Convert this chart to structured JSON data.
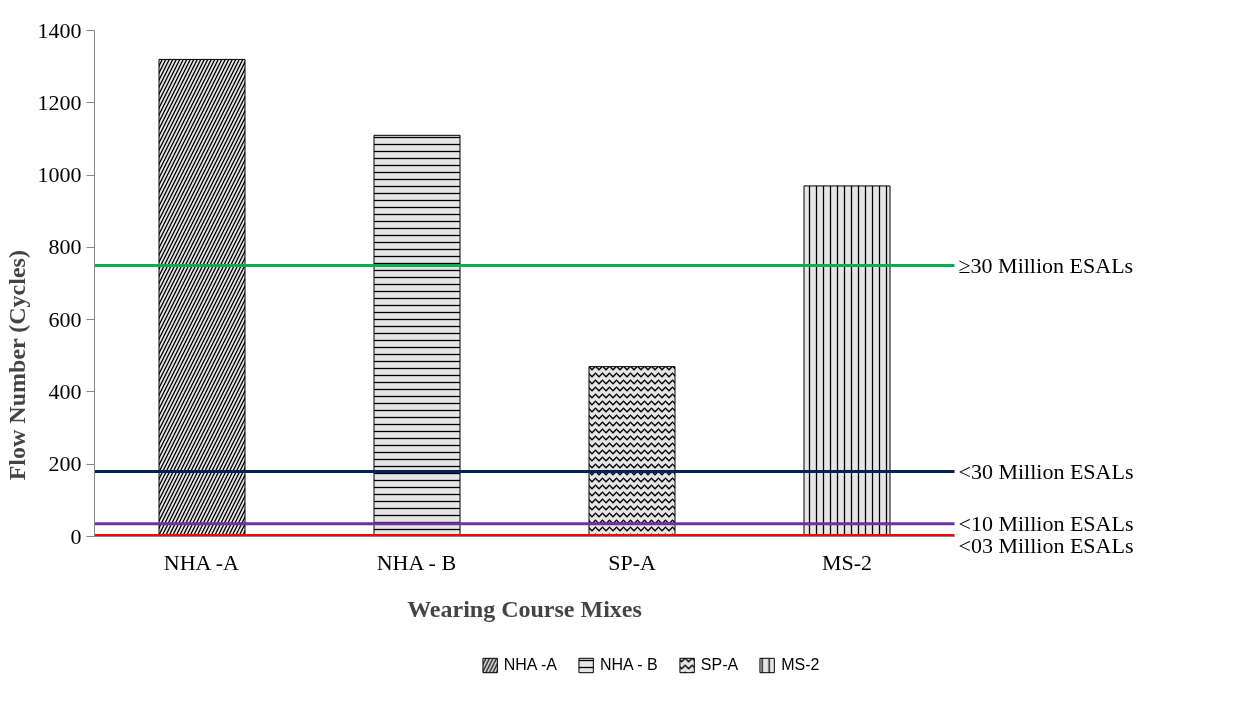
{
  "chart_data": {
    "type": "bar",
    "xlabel": "Wearing Course Mixes",
    "ylabel": "Flow Number (Cycles)",
    "categories": [
      "NHA -A",
      "NHA - B",
      "SP-A",
      "MS-2"
    ],
    "series": [
      {
        "name": "NHA -A",
        "color": "#000000",
        "values": [
          1320,
          null,
          null,
          null
        ]
      },
      {
        "name": "NHA - B",
        "color": "#000000",
        "values": [
          null,
          1110,
          null,
          null
        ]
      },
      {
        "name": "SP-A",
        "color": "#000000",
        "values": [
          null,
          null,
          470,
          null
        ]
      },
      {
        "name": "MS-2",
        "color": "#000000",
        "values": [
          null,
          null,
          null,
          970
        ]
      }
    ],
    "ylim": [
      0,
      1400
    ],
    "yticks": [
      0,
      200,
      400,
      600,
      800,
      1000,
      1200,
      1400
    ],
    "ref_lines": [
      {
        "axis": "y",
        "value": 750,
        "label": "≥30 Million ESALs",
        "color": "#00b050"
      },
      {
        "axis": "y",
        "value": 180,
        "label": "<30 Million ESALs",
        "color": "#002060"
      },
      {
        "axis": "y",
        "value": 35,
        "label": "<10 Million ESALs",
        "color": "#7030a0"
      },
      {
        "axis": "y",
        "value": 3,
        "label": "<03 Million ESALs",
        "color": "#ff0000"
      }
    ],
    "grid": false,
    "legend": "bottom"
  }
}
